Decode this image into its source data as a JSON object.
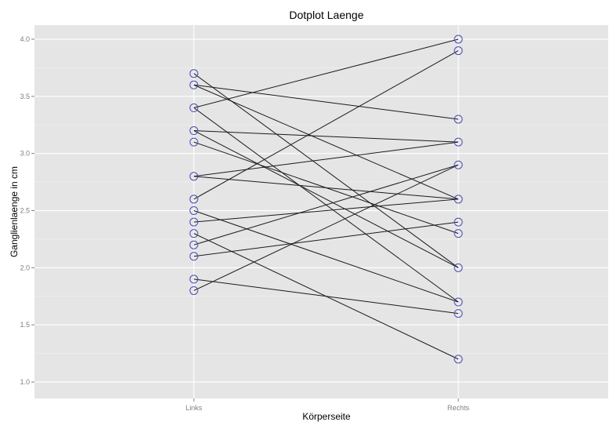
{
  "chart_data": {
    "type": "line",
    "title": "Dotplot Laenge",
    "xlabel": "Körperseite",
    "ylabel": "Ganglienlaenge in cm",
    "categories": [
      "Links",
      "Rechts"
    ],
    "ylim": [
      0.85,
      4.1
    ],
    "yticks": [
      "1.0",
      "1.5",
      "2.0",
      "2.5",
      "3.0",
      "3.5",
      "4.0"
    ],
    "grid": true,
    "legend": "none",
    "colors": {
      "panel": "#e5e5e5",
      "grid_major": "#ffffff",
      "grid_minor": "#f2f2f2",
      "line": "#1a1a1a",
      "point": "#4a4ab8",
      "tick_label": "#7f7f7f"
    },
    "pairs": [
      {
        "links": 3.7,
        "rechts": 2.0
      },
      {
        "links": 3.6,
        "rechts": 3.3
      },
      {
        "links": 3.6,
        "rechts": 2.6
      },
      {
        "links": 3.4,
        "rechts": 4.0
      },
      {
        "links": 3.4,
        "rechts": 1.7
      },
      {
        "links": 3.2,
        "rechts": 3.1
      },
      {
        "links": 3.2,
        "rechts": 2.0
      },
      {
        "links": 3.1,
        "rechts": 2.3
      },
      {
        "links": 2.8,
        "rechts": 3.1
      },
      {
        "links": 2.8,
        "rechts": 2.6
      },
      {
        "links": 2.6,
        "rechts": 3.9
      },
      {
        "links": 2.5,
        "rechts": 1.7
      },
      {
        "links": 2.4,
        "rechts": 2.6
      },
      {
        "links": 2.3,
        "rechts": 1.2
      },
      {
        "links": 2.2,
        "rechts": 2.9
      },
      {
        "links": 2.1,
        "rechts": 2.4
      },
      {
        "links": 1.9,
        "rechts": 1.6
      },
      {
        "links": 1.8,
        "rechts": 2.9
      }
    ]
  }
}
